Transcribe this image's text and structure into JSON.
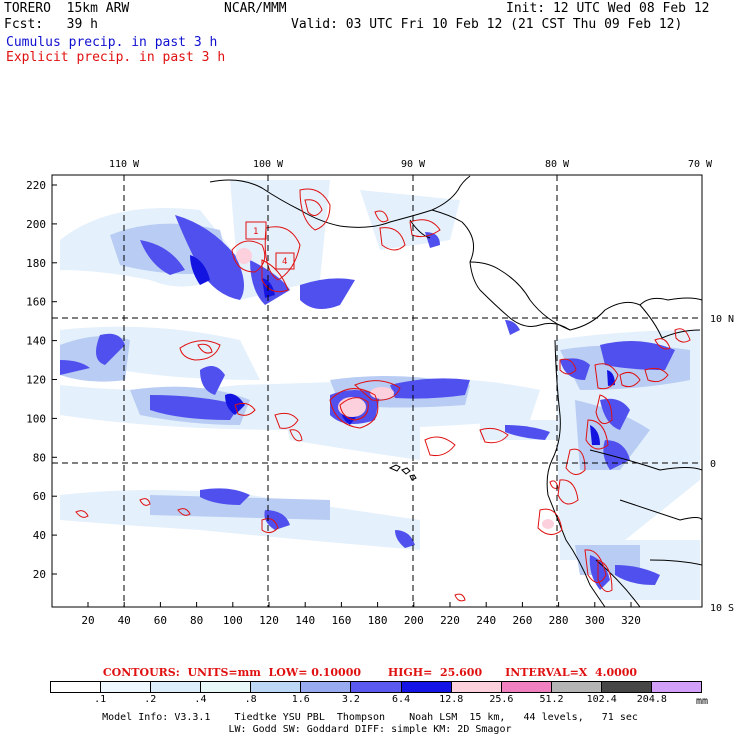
{
  "header": {
    "model": "TORERO  15km ARW",
    "org": "NCAR/MMM",
    "init": "Init: 12 UTC Wed 08 Feb 12",
    "fcst": "Fcst:   39 h",
    "valid": "Valid: 03 UTC Fri 10 Feb 12 (21 CST Thu 09 Feb 12)",
    "field1": "Cumulus precip. in past 3 h",
    "field2": "Explicit precip. in past 3 h"
  },
  "map": {
    "lon_labels": [
      "110 W",
      "100 W",
      "90 W",
      "80 W",
      "70 W"
    ],
    "lat_labels": [
      "10 N",
      "0",
      "10 S"
    ],
    "y_ticks": [
      "220",
      "200",
      "180",
      "160",
      "140",
      "120",
      "100",
      "80",
      "60",
      "40",
      "20"
    ],
    "x_ticks": [
      "20",
      "40",
      "60",
      "80",
      "100",
      "120",
      "140",
      "160",
      "180",
      "200",
      "220",
      "240",
      "260",
      "280",
      "300",
      "320"
    ],
    "contour_labels": [
      "1",
      "4"
    ]
  },
  "contours": {
    "text": "CONTOURS:  UNITS=mm  LOW= 0.10000       HIGH=  25.600      INTERVAL=X  4.0000"
  },
  "colorbar": {
    "labels": [
      ".1",
      ".2",
      ".4",
      ".8",
      "1.6",
      "3.2",
      "6.4",
      "12.8",
      "25.6",
      "51.2",
      "102.4",
      "204.8"
    ],
    "unit": "mm",
    "colors": [
      "#ffffff",
      "#f0f8ff",
      "#dceefa",
      "#e8f8f8",
      "#bcd8f4",
      "#98aaf0",
      "#5a5af0",
      "#1414e6",
      "#fcd0dc",
      "#f080c0",
      "#b4b4b4",
      "#464646",
      "#d2a0f8"
    ]
  },
  "footer": {
    "line1": "Model Info: V3.3.1    Tiedtke YSU PBL  Thompson    Noah LSM  15 km,   44 levels,   71 sec",
    "line2": "LW: Godd SW: Goddard DIFF: simple KM: 2D Smagor"
  }
}
